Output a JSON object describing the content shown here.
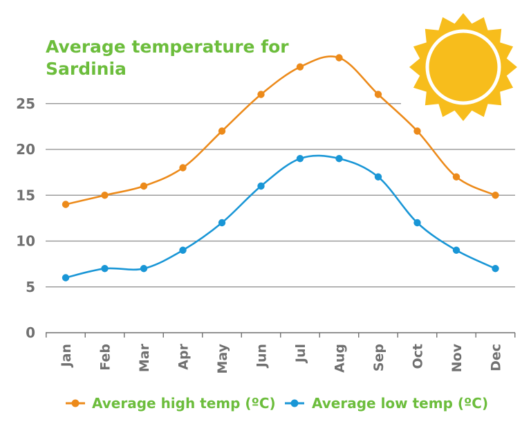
{
  "chart_data": {
    "type": "line",
    "title": "Average temperature for Sardinia",
    "categories": [
      "Jan",
      "Feb",
      "Mar",
      "Apr",
      "May",
      "Jun",
      "Jul",
      "Aug",
      "Sep",
      "Oct",
      "Nov",
      "Dec"
    ],
    "series": [
      {
        "name": "Average high temp (ºC)",
        "color": "#ec8a1a",
        "values": [
          14,
          15,
          16,
          18,
          22,
          26,
          29,
          30,
          26,
          22,
          17,
          15
        ]
      },
      {
        "name": "Average low temp (ºC)",
        "color": "#1996d6",
        "values": [
          6,
          7,
          7,
          9,
          12,
          16,
          19,
          19,
          17,
          12,
          9,
          7
        ]
      }
    ],
    "yticks": [
      0,
      5,
      10,
      15,
      20,
      25
    ],
    "ylim": [
      0,
      30
    ],
    "grid": true,
    "legend_placement": "bottom",
    "xlabel": "",
    "ylabel": ""
  },
  "decoration": {
    "sun_icon": "sun-icon",
    "sun_color": "#f7bd1c"
  }
}
